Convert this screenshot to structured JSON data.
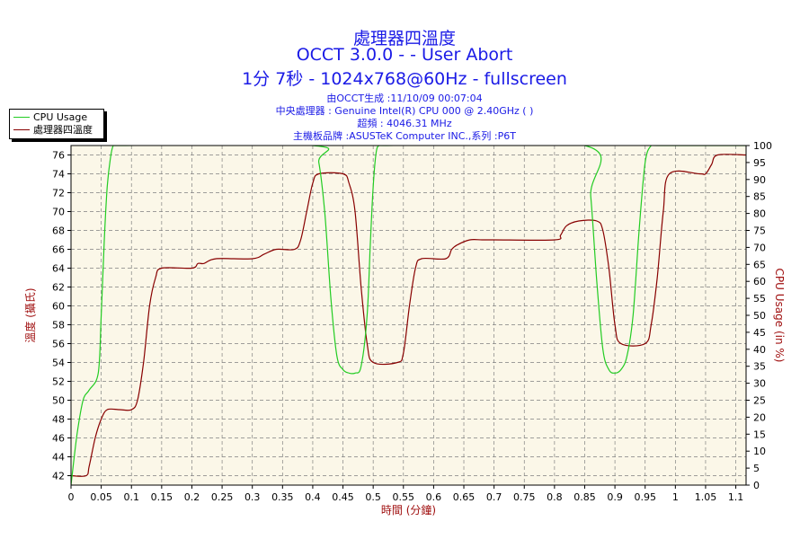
{
  "titles": {
    "line1": "處理器四溫度",
    "line2": "OCCT 3.0.0 -  - User Abort",
    "line3": "1分 7秒 - 1024x768@60Hz - fullscreen"
  },
  "info": {
    "line1": "由OCCT生成 :11/10/09 00:07:04",
    "line2": "中央處理器 : Genuine Intel(R) CPU 000 @ 2.40GHz (  )",
    "line3": "超頻 : 4046.31 MHz",
    "line4": "主機板品牌 :ASUSTeK Computer INC.,系列 :P6T"
  },
  "legend": [
    {
      "label": "CPU Usage",
      "color": "#22cc22"
    },
    {
      "label": "處理器四溫度",
      "color": "#880000"
    }
  ],
  "chart_data": {
    "type": "line",
    "xlabel": "時間 (分鐘)",
    "ylabel_left": "溫度 (攝氏)",
    "ylabel_right": "CPU Usage (in %)",
    "xlim": [
      0,
      1.117
    ],
    "ylim_left": [
      41,
      77
    ],
    "ylim_right": [
      0,
      100
    ],
    "x_ticks": [
      "0",
      "0.05",
      "0.1",
      "0.15",
      "0.2",
      "0.25",
      "0.3",
      "0.35",
      "0.4",
      "0.45",
      "0.5",
      "0.55",
      "0.6",
      "0.65",
      "0.7",
      "0.75",
      "0.8",
      "0.85",
      "0.9",
      "0.95",
      "1",
      "1.05",
      "1.1"
    ],
    "y_left_ticks": [
      "42",
      "44",
      "46",
      "48",
      "50",
      "52",
      "54",
      "56",
      "58",
      "60",
      "62",
      "64",
      "66",
      "68",
      "70",
      "72",
      "74",
      "76"
    ],
    "y_right_ticks": [
      "0",
      "5",
      "10",
      "15",
      "20",
      "25",
      "30",
      "35",
      "40",
      "45",
      "50",
      "55",
      "60",
      "65",
      "70",
      "75",
      "80",
      "85",
      "90",
      "95",
      "100"
    ],
    "grid": true,
    "legend_position": "top-left",
    "colors": {
      "plot_bg": "#fbf7e8",
      "grid": "#808080",
      "axis_text": "#000000",
      "left_label": "#a01010",
      "right_label": "#a01010",
      "xlabel": "#a01010"
    },
    "series": [
      {
        "name": "處理器四溫度",
        "axis": "left",
        "color": "#880000",
        "x": [
          0,
          0.025,
          0.03,
          0.04,
          0.05,
          0.06,
          0.08,
          0.1,
          0.11,
          0.12,
          0.13,
          0.14,
          0.15,
          0.2,
          0.21,
          0.22,
          0.24,
          0.3,
          0.32,
          0.34,
          0.37,
          0.38,
          0.39,
          0.4,
          0.41,
          0.45,
          0.46,
          0.47,
          0.48,
          0.49,
          0.5,
          0.54,
          0.55,
          0.56,
          0.57,
          0.58,
          0.62,
          0.63,
          0.64,
          0.66,
          0.68,
          0.7,
          0.8,
          0.81,
          0.82,
          0.84,
          0.87,
          0.88,
          0.89,
          0.9,
          0.91,
          0.95,
          0.96,
          0.97,
          0.98,
          0.99,
          1.04,
          1.05,
          1.06,
          1.07,
          1.117
        ],
        "y": [
          42,
          42,
          43,
          46,
          48,
          49,
          49,
          49,
          50,
          54,
          60,
          63,
          64,
          64,
          64.5,
          64.5,
          65,
          65,
          65.5,
          66,
          66,
          67,
          70,
          73,
          74,
          74,
          73,
          70,
          62,
          56,
          54,
          54,
          55,
          60,
          64,
          65,
          65,
          66,
          66.5,
          67,
          67,
          67,
          67,
          67.5,
          68.5,
          69,
          69,
          68,
          64,
          58,
          56,
          56,
          58,
          63,
          70,
          74,
          74,
          74,
          75,
          76,
          76
        ]
      },
      {
        "name": "CPU Usage",
        "axis": "right",
        "color": "#22cc22",
        "x": [
          0,
          0.01,
          0.02,
          0.03,
          0.045,
          0.05,
          0.055,
          0.06,
          0.065,
          0.07,
          0.08,
          0.4,
          0.41,
          0.42,
          0.43,
          0.44,
          0.45,
          0.46,
          0.47,
          0.48,
          0.49,
          0.495,
          0.5,
          0.505,
          0.51,
          0.52,
          0.85,
          0.86,
          0.87,
          0.88,
          0.89,
          0.9,
          0.91,
          0.92,
          0.93,
          0.94,
          0.95,
          0.96,
          0.97,
          1.117
        ],
        "y": [
          0,
          15,
          25,
          28,
          33,
          50,
          72,
          88,
          96,
          100,
          100,
          100,
          95,
          80,
          55,
          38,
          34,
          33,
          33,
          35,
          50,
          70,
          88,
          98,
          100,
          100,
          100,
          85,
          60,
          40,
          34,
          33,
          34,
          38,
          50,
          75,
          95,
          100,
          100,
          100
        ]
      }
    ]
  }
}
